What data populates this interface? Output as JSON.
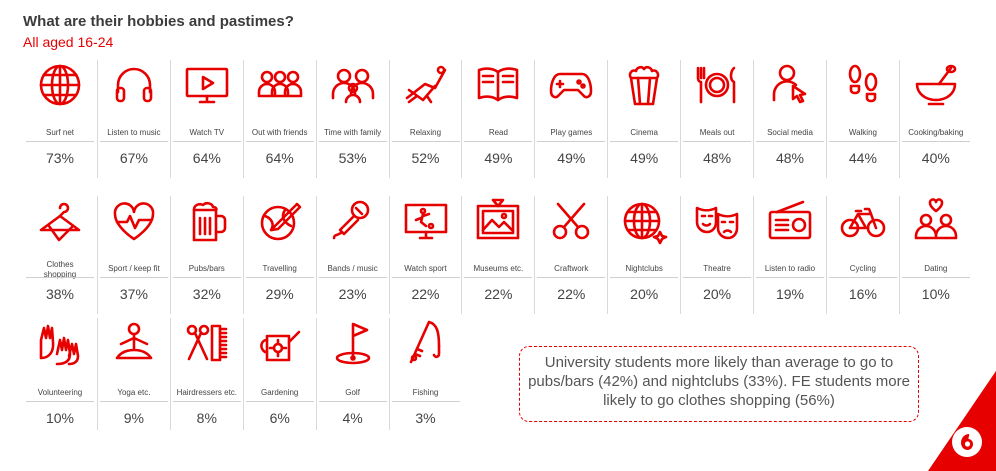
{
  "title": "What are their hobbies and pastimes?",
  "subtitle": "All aged 16-24",
  "chart_data": {
    "type": "table",
    "title": "What are their hobbies and pastimes?",
    "subtitle": "All aged 16-24",
    "unit": "%",
    "categories": [
      "Surf net",
      "Listen to music",
      "Watch TV",
      "Out with friends",
      "Time with family",
      "Relaxing",
      "Read",
      "Play games",
      "Cinema",
      "Meals out",
      "Social media",
      "Walking",
      "Cooking/baking",
      "Clothes shopping",
      "Sport / keep fit",
      "Pubs/bars",
      "Travelling",
      "Bands / music",
      "Watch sport",
      "Museums etc.",
      "Craftwork",
      "Nightclubs",
      "Theatre",
      "Listen to radio",
      "Cycling",
      "Dating",
      "Volunteering",
      "Yoga etc.",
      "Hairdressers etc.",
      "Gardening",
      "Golf",
      "Fishing"
    ],
    "values": [
      73,
      67,
      64,
      64,
      53,
      52,
      49,
      49,
      49,
      48,
      48,
      44,
      40,
      38,
      37,
      32,
      29,
      23,
      22,
      22,
      22,
      20,
      20,
      19,
      16,
      10,
      10,
      9,
      8,
      6,
      4,
      3
    ]
  },
  "items": [
    {
      "label": "Surf net",
      "pct": "73%",
      "icon": "globe-icon"
    },
    {
      "label": "Listen to music",
      "pct": "67%",
      "icon": "headphones-icon"
    },
    {
      "label": "Watch TV",
      "pct": "64%",
      "icon": "tv-icon"
    },
    {
      "label": "Out with friends",
      "pct": "64%",
      "icon": "friends-icon"
    },
    {
      "label": "Time with family",
      "pct": "53%",
      "icon": "family-icon"
    },
    {
      "label": "Relaxing",
      "pct": "52%",
      "icon": "deckchair-icon"
    },
    {
      "label": "Read",
      "pct": "49%",
      "icon": "book-icon"
    },
    {
      "label": "Play games",
      "pct": "49%",
      "icon": "gamepad-icon"
    },
    {
      "label": "Cinema",
      "pct": "49%",
      "icon": "popcorn-icon"
    },
    {
      "label": "Meals out",
      "pct": "48%",
      "icon": "cutlery-icon"
    },
    {
      "label": "Social media",
      "pct": "48%",
      "icon": "person-cursor-icon"
    },
    {
      "label": "Walking",
      "pct": "44%",
      "icon": "footprints-icon"
    },
    {
      "label": "Cooking/baking",
      "pct": "40%",
      "icon": "mixing-bowl-icon"
    },
    {
      "label": "Clothes shopping",
      "pct": "38%",
      "icon": "hanger-icon"
    },
    {
      "label": "Sport / keep fit",
      "pct": "37%",
      "icon": "heartbeat-icon"
    },
    {
      "label": "Pubs/bars",
      "pct": "32%",
      "icon": "beer-mug-icon"
    },
    {
      "label": "Travelling",
      "pct": "29%",
      "icon": "plane-globe-icon"
    },
    {
      "label": "Bands / music",
      "pct": "23%",
      "icon": "microphone-icon"
    },
    {
      "label": "Watch sport",
      "pct": "22%",
      "icon": "sport-screen-icon"
    },
    {
      "label": "Museums etc.",
      "pct": "22%",
      "icon": "picture-frame-icon"
    },
    {
      "label": "Craftwork",
      "pct": "22%",
      "icon": "scissors-icon"
    },
    {
      "label": "Nightclubs",
      "pct": "20%",
      "icon": "disco-ball-icon"
    },
    {
      "label": "Theatre",
      "pct": "20%",
      "icon": "theatre-masks-icon"
    },
    {
      "label": "Listen to radio",
      "pct": "19%",
      "icon": "radio-icon"
    },
    {
      "label": "Cycling",
      "pct": "16%",
      "icon": "bicycle-icon"
    },
    {
      "label": "Dating",
      "pct": "10%",
      "icon": "couple-heart-icon"
    },
    {
      "label": "Volunteering",
      "pct": "10%",
      "icon": "raised-hands-icon"
    },
    {
      "label": "Yoga etc.",
      "pct": "9%",
      "icon": "meditation-icon"
    },
    {
      "label": "Hairdressers etc.",
      "pct": "8%",
      "icon": "scissors-comb-icon"
    },
    {
      "label": "Gardening",
      "pct": "6%",
      "icon": "watering-can-icon"
    },
    {
      "label": "Golf",
      "pct": "4%",
      "icon": "golf-flag-icon"
    },
    {
      "label": "Fishing",
      "pct": "3%",
      "icon": "fishing-rod-icon"
    }
  ],
  "note": "University students more likely than average to go to pubs/bars (42%) and nightclubs (33%). FE students more likely to go clothes shopping (56%)",
  "brand": {
    "accent": "#e60000",
    "logo": "vodafone-logo-icon"
  }
}
